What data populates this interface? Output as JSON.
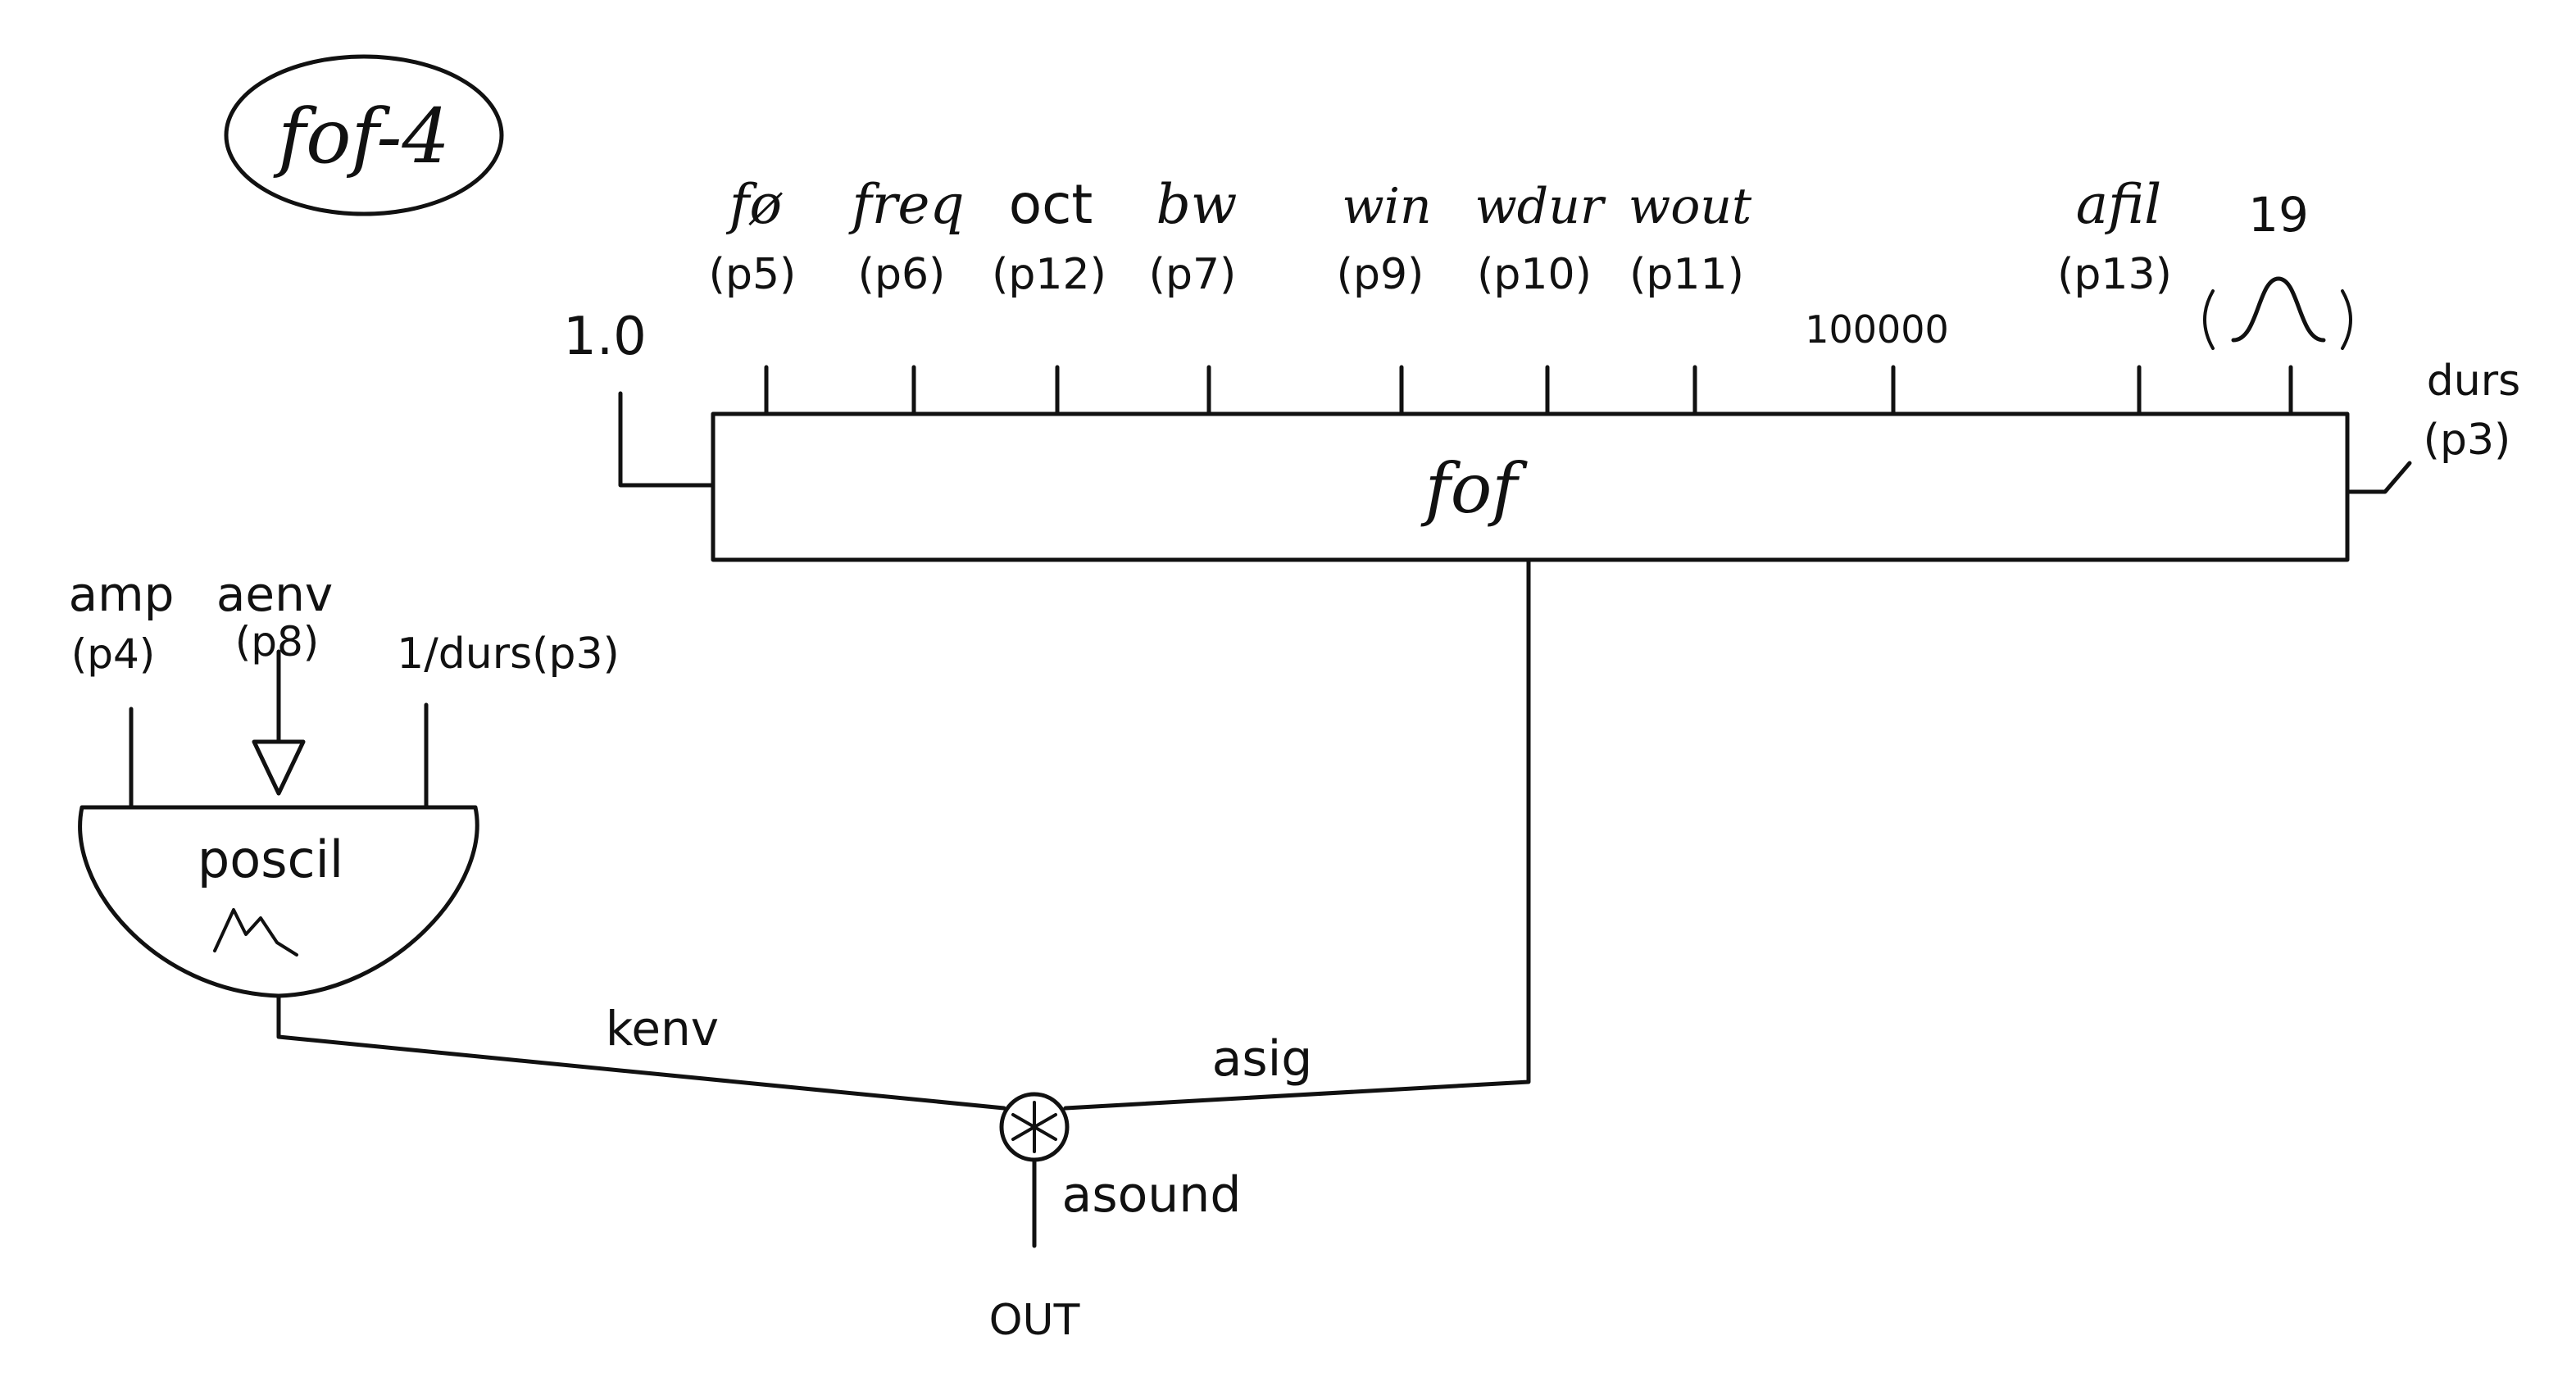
{
  "title": "fof-4",
  "fof_box": {
    "label": "fof",
    "left_input": "1.0",
    "right_input_name": "durs",
    "right_input_param": "(p3)"
  },
  "fof_inputs": [
    {
      "name": "fø",
      "param": "(p5)"
    },
    {
      "name": "freq",
      "param": "(p6)"
    },
    {
      "name": "oct",
      "param": "(p12)"
    },
    {
      "name": "bw",
      "param": "(p7)"
    },
    {
      "name": "win",
      "param": "(p9)"
    },
    {
      "name": "wdur",
      "param": "(p10)"
    },
    {
      "name": "wout",
      "param": "(p11)"
    },
    {
      "name": "100000",
      "param": ""
    },
    {
      "name": "afil",
      "param": "(p13)"
    },
    {
      "name": "19",
      "param": ""
    }
  ],
  "poscil": {
    "label": "poscil",
    "inputs": [
      {
        "name": "amp",
        "param": "(p4)"
      },
      {
        "name": "aenv",
        "param": "(p8)"
      },
      {
        "name": "1/durs(p3)",
        "param": ""
      }
    ]
  },
  "signals": {
    "left": "kenv",
    "right": "asig",
    "product": "asound",
    "output": "OUT"
  },
  "icons": {
    "bell_window": "bell-curve-icon",
    "envelope_wave": "envelope-wave-icon",
    "multiplier": "multiplier-icon",
    "input_arrow": "triangle-arrow-icon"
  }
}
